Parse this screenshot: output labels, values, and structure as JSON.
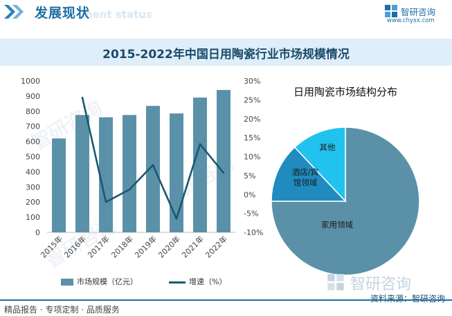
{
  "header": {
    "title": "发展现状",
    "subtitle": "ment status",
    "logo_name": "智研咨询",
    "logo_url": "www.chyxx.com"
  },
  "main_title": "2015-2022年中国日用陶瓷行业市场规模情况",
  "chart_data": [
    {
      "type": "bar",
      "categories": [
        "2015年",
        "2016年",
        "2017年",
        "2018年",
        "2019年",
        "2020年",
        "2021年",
        "2022年"
      ],
      "series": [
        {
          "name": "市场规模（亿元）",
          "type": "bar",
          "axis": "left",
          "color": "#5b91a8",
          "values": [
            620,
            775,
            760,
            775,
            835,
            785,
            890,
            940
          ]
        },
        {
          "name": "增速（%）",
          "type": "line",
          "axis": "right",
          "color": "#1a5870",
          "values": [
            null,
            25.6,
            -2.0,
            1.3,
            7.8,
            -6.4,
            13.3,
            5.7
          ]
        }
      ],
      "ylim_left": [
        0,
        1000
      ],
      "yticks_left": [
        "0",
        "100",
        "200",
        "300",
        "400",
        "500",
        "600",
        "700",
        "800",
        "900",
        "1000"
      ],
      "ylim_right": [
        -10,
        30
      ],
      "yticks_right": [
        "-10%",
        "-5%",
        "0%",
        "5%",
        "10%",
        "15%",
        "20%",
        "25%",
        "30%"
      ],
      "legend_position": "bottom"
    },
    {
      "type": "pie",
      "title": "日用陶瓷市场结构分布",
      "slices": [
        {
          "label": "家用领域",
          "value": 75,
          "color": "#5b91a8"
        },
        {
          "label": "酒店/宾馆领域",
          "value": 13,
          "color": "#1f8bbf"
        },
        {
          "label": "其他",
          "value": 12,
          "color": "#21c2ee"
        }
      ]
    }
  ],
  "watermarks": [
    "智研咨询"
  ],
  "footer": {
    "left": "精品报告 · 专项定制 · 品质服务",
    "source": "资料来源：智研咨询"
  }
}
